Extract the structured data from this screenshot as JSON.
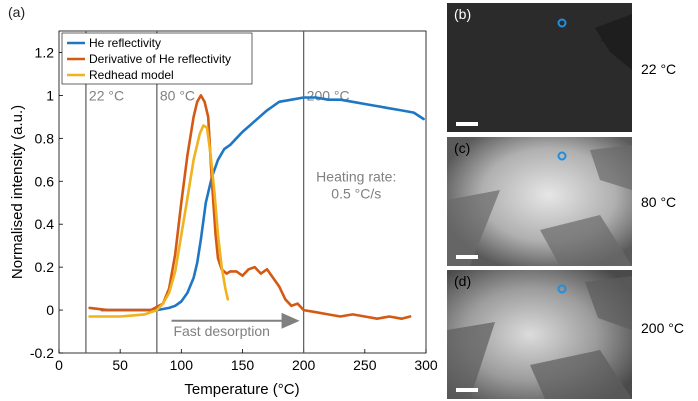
{
  "panel_label": "(a)",
  "chart_data": {
    "type": "line",
    "title": "",
    "xlabel": "Temperature (°C)",
    "ylabel": "Normalised intensity (a.u.)",
    "xlim": [
      0,
      300
    ],
    "ylim": [
      -0.2,
      1.3
    ],
    "xticks": [
      0,
      50,
      100,
      150,
      200,
      250,
      300
    ],
    "yticks": [
      -0.2,
      0,
      0.2,
      0.4,
      0.6,
      0.8,
      1,
      1.2
    ],
    "ytick_labels": [
      "-0.2",
      "0",
      "0.2",
      "0.4",
      "0.6",
      "0.8",
      "1",
      "1.2"
    ],
    "grid": false,
    "legend_position": "top-left",
    "series": [
      {
        "name": "He reflectivity",
        "color": "#1f77c4",
        "x": [
          35,
          50,
          60,
          70,
          80,
          90,
          95,
          100,
          105,
          110,
          113,
          116,
          120,
          125,
          130,
          135,
          140,
          145,
          150,
          160,
          170,
          180,
          190,
          200,
          210,
          220,
          230,
          240,
          250,
          260,
          270,
          280,
          290,
          298
        ],
        "y": [
          0.0,
          0.0,
          0.0,
          0.0,
          0.0,
          0.01,
          0.02,
          0.04,
          0.08,
          0.15,
          0.22,
          0.33,
          0.5,
          0.62,
          0.7,
          0.75,
          0.77,
          0.8,
          0.83,
          0.88,
          0.93,
          0.97,
          0.98,
          0.99,
          0.99,
          0.98,
          0.98,
          0.97,
          0.96,
          0.95,
          0.94,
          0.93,
          0.92,
          0.89
        ]
      },
      {
        "name": "Derivative of He reflectivity",
        "color": "#d45a14",
        "x": [
          25,
          40,
          60,
          75,
          85,
          90,
          95,
          100,
          105,
          110,
          113,
          116,
          119,
          122,
          125,
          128,
          130,
          133,
          137,
          140,
          145,
          150,
          155,
          160,
          165,
          170,
          175,
          180,
          185,
          190,
          195,
          200,
          210,
          220,
          230,
          240,
          250,
          260,
          270,
          280,
          287
        ],
        "y": [
          0.01,
          0.0,
          0.0,
          0.0,
          0.03,
          0.1,
          0.26,
          0.5,
          0.72,
          0.9,
          0.97,
          1.0,
          0.97,
          0.9,
          0.6,
          0.35,
          0.24,
          0.19,
          0.17,
          0.18,
          0.18,
          0.16,
          0.19,
          0.2,
          0.17,
          0.19,
          0.15,
          0.11,
          0.05,
          0.02,
          0.03,
          0.0,
          -0.01,
          -0.02,
          -0.03,
          -0.02,
          -0.03,
          -0.04,
          -0.03,
          -0.04,
          -0.03
        ]
      },
      {
        "name": "Redhead model",
        "color": "#f0b21e",
        "x": [
          25,
          50,
          70,
          80,
          85,
          90,
          95,
          100,
          105,
          110,
          115,
          118,
          121,
          124,
          127,
          130,
          133,
          136,
          138
        ],
        "y": [
          -0.03,
          -0.03,
          -0.02,
          0.0,
          0.03,
          0.08,
          0.18,
          0.35,
          0.52,
          0.7,
          0.82,
          0.86,
          0.85,
          0.72,
          0.55,
          0.35,
          0.2,
          0.1,
          0.05
        ]
      }
    ],
    "vlines": [
      {
        "x": 22,
        "label": "22 °C"
      },
      {
        "x": 80,
        "label": "80 °C"
      },
      {
        "x": 200,
        "label": "200 °C"
      }
    ],
    "annotations": [
      {
        "text": "Heating rate:",
        "x": 243,
        "y": 0.6
      },
      {
        "text": "0.5 °C/s",
        "x": 243,
        "y": 0.52
      },
      {
        "text": "Fast desorption",
        "x": 133,
        "y": -0.12
      }
    ],
    "arrow": {
      "x_start": 92,
      "x_end": 195,
      "y": -0.05
    }
  },
  "side_panels": [
    {
      "label": "(b)",
      "temperature": "22 °C"
    },
    {
      "label": "(c)",
      "temperature": "80 °C"
    },
    {
      "label": "(d)",
      "temperature": "200 °C"
    }
  ]
}
